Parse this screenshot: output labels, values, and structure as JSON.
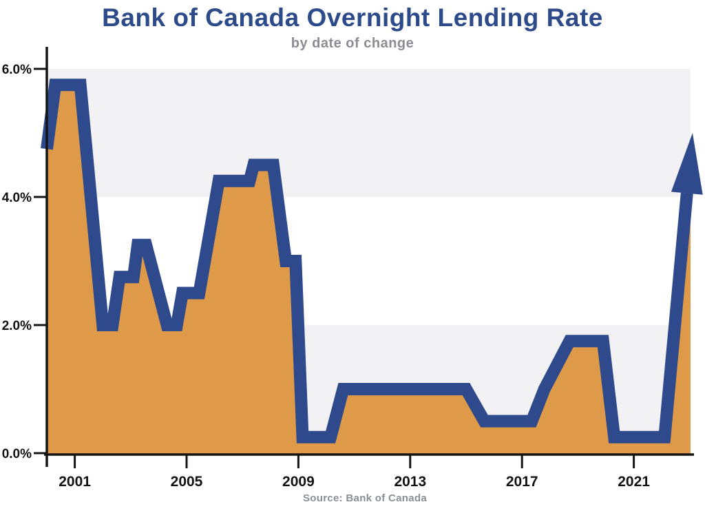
{
  "chart_data": {
    "type": "area",
    "title": "Bank of Canada Overnight Lending Rate",
    "subtitle": "by date of change",
    "source": "Source: Bank of Canada",
    "xlabel": "",
    "ylabel": "",
    "xlim": [
      2000,
      2023.1
    ],
    "ylim": [
      0,
      6
    ],
    "grid": false,
    "legend": null,
    "x_ticks": [
      2001,
      2005,
      2009,
      2013,
      2017,
      2021
    ],
    "x_tick_labels": [
      "2001",
      "2005",
      "2009",
      "2013",
      "2017",
      "2021"
    ],
    "y_ticks": [
      0,
      2,
      4,
      6
    ],
    "y_tick_labels": [
      "0.0%",
      "2.0%",
      "4.0%",
      "6.0%"
    ],
    "bands": [
      {
        "from": 0,
        "to": 2
      },
      {
        "from": 4,
        "to": 6
      }
    ],
    "series": [
      {
        "name": "Overnight lending rate (%) by date of change",
        "points": [
          [
            2000.0,
            4.75
          ],
          [
            2000.3,
            5.75
          ],
          [
            2001.2,
            5.75
          ],
          [
            2002.0,
            2.0
          ],
          [
            2002.35,
            2.0
          ],
          [
            2002.6,
            2.75
          ],
          [
            2003.1,
            2.75
          ],
          [
            2003.25,
            3.25
          ],
          [
            2003.55,
            3.25
          ],
          [
            2004.3,
            2.0
          ],
          [
            2004.65,
            2.0
          ],
          [
            2004.85,
            2.5
          ],
          [
            2005.45,
            2.5
          ],
          [
            2006.15,
            4.25
          ],
          [
            2007.25,
            4.25
          ],
          [
            2007.4,
            4.5
          ],
          [
            2008.1,
            4.5
          ],
          [
            2008.55,
            3.0
          ],
          [
            2008.9,
            3.0
          ],
          [
            2009.15,
            0.25
          ],
          [
            2010.15,
            0.25
          ],
          [
            2010.6,
            1.0
          ],
          [
            2015.0,
            1.0
          ],
          [
            2015.65,
            0.5
          ],
          [
            2017.35,
            0.5
          ],
          [
            2017.8,
            1.0
          ],
          [
            2018.7,
            1.75
          ],
          [
            2019.9,
            1.75
          ],
          [
            2020.3,
            0.25
          ],
          [
            2022.1,
            0.25
          ],
          [
            2023.1,
            5.0
          ]
        ]
      }
    ],
    "annotation": {
      "type": "up-arrow",
      "meaning": "series ends in an upward-pointing arrow indicating rising rates"
    },
    "colors": {
      "line": "#2e4a8c",
      "fill": "#df9a49",
      "band": "#f2f2f4",
      "axis": "#151515",
      "tick_label": "#121212",
      "title": "#2d4a8a",
      "subtitle": "#8b8b93",
      "source": "#8a8f96"
    }
  }
}
